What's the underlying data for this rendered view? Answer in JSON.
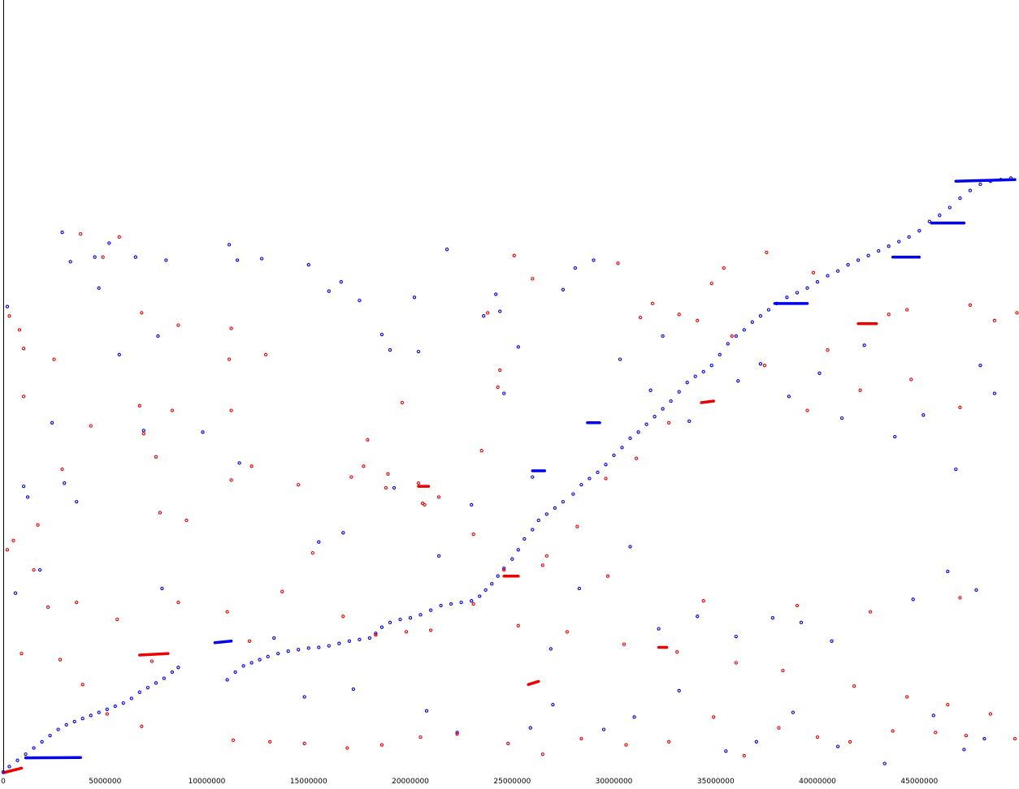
{
  "chart_data": {
    "type": "scatter",
    "title": "",
    "xlabel": "",
    "ylabel": "",
    "xlim": [
      0,
      49900000
    ],
    "ylim": [
      0,
      49900000
    ],
    "grid": false,
    "legend": "none",
    "x_ticks": [
      {
        "value": 0,
        "label": "0"
      },
      {
        "value": 5000000,
        "label": "5000000"
      },
      {
        "value": 10000000,
        "label": "10000000"
      },
      {
        "value": 15000000,
        "label": "15000000"
      },
      {
        "value": 20000000,
        "label": "20000000"
      },
      {
        "value": 25000000,
        "label": "25000000"
      },
      {
        "value": 30000000,
        "label": "30000000"
      },
      {
        "value": 35000000,
        "label": "35000000"
      },
      {
        "value": 40000000,
        "label": "40000000"
      },
      {
        "value": 45000000,
        "label": "45000000"
      }
    ],
    "colors": {
      "forward": "#0000ee",
      "reverse": "#ee0000",
      "axis": "#000000"
    },
    "series": [
      {
        "strand": "forward",
        "color": "#0000ee",
        "segments": [
          [
            [
              1100000,
              966000
            ],
            [
              3800000,
              984000
            ]
          ],
          [
            [
              10400000,
              8400000
            ],
            [
              11200000,
              8500000
            ]
          ],
          [
            [
              26000000,
              19500000
            ],
            [
              26600000,
              19500000
            ]
          ],
          [
            [
              28700000,
              22600000
            ],
            [
              29300000,
              22600000
            ]
          ],
          [
            [
              37900000,
              30300000
            ],
            [
              39500000,
              30300000
            ]
          ],
          [
            [
              43700000,
              33300000
            ],
            [
              45000000,
              33300000
            ]
          ],
          [
            [
              45600000,
              35500000
            ],
            [
              47200000,
              35500000
            ]
          ],
          [
            [
              46800000,
              38200000
            ],
            [
              49700000,
              38300000
            ]
          ]
        ],
        "x": [
          0,
          300000,
          700000,
          1100000,
          1500000,
          1900000,
          2300000,
          2700000,
          3100000,
          3500000,
          3900000,
          4300000,
          4700000,
          5100000,
          5500000,
          5900000,
          6300000,
          6700000,
          7100000,
          7500000,
          7900000,
          8300000,
          8600000,
          11000000,
          11400000,
          11800000,
          12200000,
          12600000,
          13000000,
          13500000,
          14000000,
          14500000,
          15000000,
          15500000,
          16000000,
          16500000,
          17000000,
          17500000,
          18000000,
          18300000,
          18600000,
          19000000,
          19500000,
          20000000,
          20500000,
          21000000,
          21500000,
          22000000,
          22500000,
          23000000,
          23400000,
          23700000,
          24000000,
          24300000,
          24600000,
          25000000,
          25300000,
          25600000,
          26000000,
          26300000,
          26700000,
          27100000,
          27500000,
          28000000,
          28400000,
          28800000,
          29200000,
          29600000,
          30000000,
          30400000,
          30800000,
          31200000,
          31600000,
          32000000,
          32400000,
          32800000,
          33200000,
          33600000,
          34000000,
          34400000,
          34800000,
          35200000,
          35600000,
          36000000,
          36400000,
          36800000,
          37200000,
          37600000,
          38000000,
          38500000,
          39000000,
          39500000,
          40000000,
          40500000,
          41000000,
          41500000,
          42000000,
          42500000,
          43000000,
          43500000,
          44000000,
          44500000,
          45000000,
          45500000,
          46000000,
          46500000,
          47000000,
          47500000,
          48000000,
          48500000,
          49000000,
          49500000,
          2900000,
          6500000,
          3300000,
          4500000,
          5200000,
          8000000,
          11100000,
          11500000,
          12700000,
          15000000,
          16600000,
          16000000,
          17500000,
          18600000,
          19000000,
          20200000,
          20400000,
          21800000,
          23600000,
          24200000,
          24400000,
          25300000,
          27500000,
          28100000,
          29000000,
          30300000,
          31800000,
          32400000,
          33700000,
          36100000,
          37200000,
          38600000,
          40100000,
          41200000,
          42300000,
          43800000,
          45200000,
          46800000,
          48000000,
          48700000,
          6900000,
          7600000,
          3600000,
          1800000,
          3000000,
          1000000,
          200000,
          9800000,
          11600000,
          15500000,
          16700000,
          19200000,
          21400000,
          23000000,
          24600000,
          26000000,
          26900000,
          28300000,
          30800000,
          32200000,
          34100000,
          36000000,
          37800000,
          39200000,
          40700000,
          44700000,
          46400000,
          47800000,
          13300000,
          14800000,
          17200000,
          20800000,
          22300000,
          25900000,
          27000000,
          29500000,
          31000000,
          33200000,
          35500000,
          37000000,
          38800000,
          41000000,
          43300000,
          45700000,
          47200000,
          48200000,
          600000,
          1200000,
          2400000,
          4700000,
          5700000,
          7800000
        ],
        "y": [
          50000,
          400000,
          800000,
          1200000,
          1600000,
          2000000,
          2400000,
          2800000,
          3100000,
          3300000,
          3500000,
          3700000,
          3900000,
          4100000,
          4300000,
          4500000,
          4800000,
          5200000,
          5500000,
          5800000,
          6100000,
          6500000,
          6800000,
          6000000,
          6500000,
          6900000,
          7100000,
          7300000,
          7500000,
          7700000,
          7850000,
          7950000,
          8050000,
          8100000,
          8200000,
          8350000,
          8500000,
          8600000,
          8700000,
          9000000,
          9400000,
          9700000,
          9900000,
          10000000,
          10200000,
          10500000,
          10800000,
          10900000,
          11000000,
          11100000,
          11400000,
          11800000,
          12200000,
          12700000,
          13200000,
          13800000,
          14400000,
          15100000,
          15700000,
          16300000,
          16700000,
          17100000,
          17500000,
          18000000,
          18600000,
          19000000,
          19400000,
          19900000,
          20500000,
          21000000,
          21600000,
          22000000,
          22500000,
          23000000,
          23500000,
          24000000,
          24600000,
          25200000,
          25600000,
          25900000,
          26300000,
          27000000,
          27700000,
          28200000,
          28600000,
          29100000,
          29500000,
          29900000,
          30300000,
          30700000,
          31000000,
          31300000,
          31700000,
          32100000,
          32400000,
          32800000,
          33100000,
          33400000,
          33700000,
          34000000,
          34300000,
          34600000,
          35000000,
          35600000,
          36000000,
          36500000,
          37100000,
          37600000,
          38000000,
          38200000,
          38300000,
          38400000,
          34900000,
          33300000,
          33000000,
          33300000,
          34200000,
          33100000,
          34100000,
          33100000,
          33200000,
          32800000,
          31700000,
          31100000,
          30500000,
          28300000,
          27300000,
          30700000,
          27200000,
          33800000,
          29500000,
          30900000,
          29800000,
          27500000,
          31200000,
          32600000,
          33100000,
          26700000,
          24700000,
          28200000,
          22700000,
          25300000,
          26400000,
          24300000,
          25800000,
          22900000,
          27600000,
          21700000,
          23100000,
          19600000,
          26300000,
          24500000,
          22100000,
          28200000,
          17500000,
          13100000,
          18700000,
          18500000,
          30100000,
          22000000,
          20000000,
          14900000,
          15500000,
          18400000,
          14000000,
          17300000,
          24500000,
          19100000,
          8000000,
          11900000,
          14600000,
          9300000,
          10100000,
          8800000,
          10000000,
          9700000,
          8500000,
          11200000,
          13000000,
          11800000,
          8700000,
          4900000,
          5400000,
          4000000,
          2600000,
          2900000,
          4400000,
          2800000,
          3600000,
          5300000,
          1400000,
          2000000,
          3900000,
          1700000,
          600000,
          3700000,
          1500000,
          2200000,
          11600000,
          17800000,
          22600000,
          31300000,
          27000000,
          11900000
        ]
      },
      {
        "strand": "reverse",
        "color": "#ee0000",
        "segments": [
          [
            [
              0,
              0
            ],
            [
              900000,
              300000
            ]
          ],
          [
            [
              6700000,
              7600000
            ],
            [
              8100000,
              7700000
            ]
          ],
          [
            [
              24600000,
              12700000
            ],
            [
              25300000,
              12700000
            ]
          ],
          [
            [
              20400000,
              18500000
            ],
            [
              20900000,
              18500000
            ]
          ],
          [
            [
              42000000,
              29000000
            ],
            [
              42900000,
              29000000
            ]
          ],
          [
            [
              34300000,
              23900000
            ],
            [
              34900000,
              24000000
            ]
          ],
          [
            [
              25800000,
              5700000
            ],
            [
              26300000,
              5900000
            ]
          ],
          [
            [
              32200000,
              8100000
            ],
            [
              32600000,
              8100000
            ]
          ]
        ],
        "x": [
          3800000,
          5700000,
          4900000,
          300000,
          800000,
          1000000,
          6800000,
          6700000,
          8600000,
          11100000,
          11200000,
          12900000,
          11200000,
          8300000,
          6900000,
          1000000,
          2500000,
          7500000,
          4300000,
          2900000,
          7700000,
          11200000,
          14500000,
          17100000,
          18800000,
          20600000,
          20400000,
          21400000,
          18900000,
          17700000,
          19600000,
          23800000,
          24300000,
          25100000,
          26000000,
          24400000,
          23500000,
          30200000,
          31300000,
          31900000,
          33200000,
          34800000,
          35400000,
          37500000,
          39800000,
          40500000,
          43500000,
          44400000,
          47500000,
          48700000,
          49800000,
          47000000,
          44600000,
          42100000,
          39500000,
          37400000,
          35800000,
          34100000,
          32700000,
          31100000,
          29600000,
          28200000,
          26700000,
          24600000,
          23100000,
          21000000,
          19800000,
          18300000,
          16700000,
          15200000,
          13700000,
          12100000,
          11000000,
          9000000,
          7300000,
          5600000,
          3600000,
          2200000,
          1500000,
          500000,
          200000,
          900000,
          2800000,
          3900000,
          5100000,
          6800000,
          8600000,
          11300000,
          13100000,
          14800000,
          16900000,
          18600000,
          20500000,
          22300000,
          24800000,
          26500000,
          28400000,
          30600000,
          32700000,
          34900000,
          36400000,
          38100000,
          40000000,
          41600000,
          43700000,
          45800000,
          47300000,
          49700000,
          25300000,
          27700000,
          30500000,
          33100000,
          36000000,
          38300000,
          41800000,
          44400000,
          46400000,
          48500000,
          1700000,
          12200000,
          17900000,
          20700000,
          23100000,
          26500000,
          29700000,
          34400000,
          39000000,
          42600000,
          47000000
        ],
        "y": [
          34800000,
          34600000,
          33300000,
          29500000,
          28600000,
          24300000,
          29700000,
          23700000,
          28900000,
          26700000,
          23400000,
          27000000,
          28700000,
          23400000,
          21900000,
          27400000,
          26700000,
          20400000,
          22400000,
          19600000,
          16800000,
          18900000,
          18600000,
          19100000,
          18400000,
          17400000,
          18700000,
          17800000,
          19300000,
          19800000,
          23900000,
          29700000,
          24900000,
          33400000,
          31900000,
          26000000,
          20800000,
          32900000,
          29400000,
          30300000,
          29600000,
          31600000,
          32600000,
          33600000,
          32300000,
          27300000,
          29600000,
          29900000,
          30200000,
          29200000,
          29700000,
          23600000,
          25400000,
          24700000,
          23400000,
          26300000,
          28200000,
          29200000,
          22600000,
          20300000,
          19000000,
          15900000,
          14000000,
          13100000,
          10900000,
          9200000,
          9100000,
          8900000,
          10100000,
          14200000,
          11700000,
          8500000,
          10400000,
          16300000,
          7200000,
          9900000,
          11000000,
          10700000,
          13100000,
          15000000,
          14400000,
          7700000,
          7300000,
          5700000,
          3800000,
          3000000,
          11000000,
          2100000,
          2000000,
          1900000,
          1600000,
          1800000,
          2300000,
          2500000,
          1900000,
          1200000,
          2200000,
          1800000,
          2000000,
          3600000,
          1100000,
          2900000,
          2300000,
          2000000,
          2700000,
          2600000,
          2400000,
          2200000,
          9500000,
          9100000,
          8300000,
          7800000,
          7100000,
          6600000,
          5600000,
          4900000,
          4400000,
          3800000,
          16000000,
          19800000,
          21500000,
          17300000,
          15400000,
          13400000,
          12700000,
          11100000,
          10800000,
          10400000,
          11300000
        ]
      }
    ]
  }
}
